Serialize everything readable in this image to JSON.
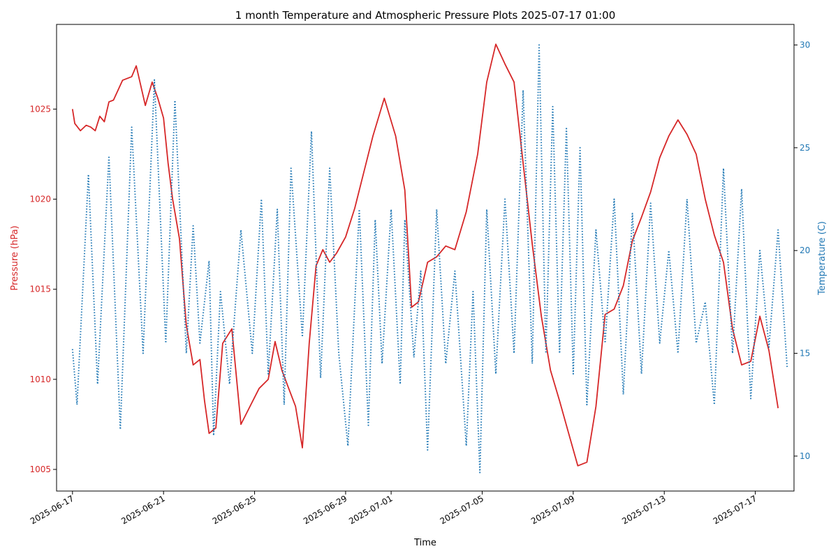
{
  "chart_data": {
    "type": "line",
    "title": "1 month Temperature and Atmospheric Pressure Plots  2025-07-17 01:00",
    "xlabel": "Time",
    "x_ticks": [
      "2025-06-17",
      "2025-06-21",
      "2025-06-25",
      "2025-06-29",
      "2025-07-01",
      "2025-07-05",
      "2025-07-09",
      "2025-07-13",
      "2025-07-17"
    ],
    "y_left": {
      "label": "Pressure (hPa)",
      "ticks": [
        "1005",
        "1010",
        "1015",
        "1020",
        "1025"
      ],
      "range": [
        1003.8,
        1029.7
      ],
      "color": "#d62728"
    },
    "y_right": {
      "label": "Temperature (C)",
      "ticks": [
        "10",
        "15",
        "20",
        "25",
        "30"
      ],
      "range": [
        8.3,
        31.0
      ],
      "color": "#1f77b4"
    },
    "x_range_days": [
      -0.7,
      31.7
    ],
    "series": [
      {
        "name": "Pressure (hPa)",
        "axis": "left",
        "style": "solid",
        "color": "#d62728",
        "x": [
          0,
          0.1,
          0.35,
          0.6,
          0.8,
          1.0,
          1.2,
          1.4,
          1.6,
          1.8,
          2.2,
          2.6,
          2.8,
          3.2,
          3.5,
          3.75,
          4.0,
          4.2,
          4.4,
          4.7,
          5.0,
          5.3,
          5.6,
          5.8,
          6.0,
          6.3,
          6.6,
          7.0,
          7.4,
          7.8,
          8.2,
          8.6,
          8.9,
          9.2,
          9.5,
          9.8,
          10.1,
          10.4,
          10.7,
          11.0,
          11.3,
          11.6,
          12.0,
          12.4,
          12.8,
          13.2,
          13.7,
          14.2,
          14.6,
          14.9,
          15.2,
          15.6,
          16.0,
          16.4,
          16.8,
          17.3,
          17.8,
          18.2,
          18.6,
          19.0,
          19.4,
          19.8,
          20.2,
          20.6,
          21.0,
          21.4,
          21.8,
          22.2,
          22.6,
          23.0,
          23.4,
          23.8,
          24.2,
          24.6,
          25.0,
          25.4,
          25.8,
          26.2,
          26.6,
          27.0,
          27.4,
          27.8,
          28.2,
          28.6,
          29.0,
          29.4,
          29.8,
          30.2,
          30.6,
          31.0
        ],
        "y": [
          1025.0,
          1024.2,
          1023.8,
          1024.1,
          1024.0,
          1023.8,
          1024.6,
          1024.3,
          1025.4,
          1025.5,
          1026.6,
          1026.8,
          1027.4,
          1025.2,
          1026.5,
          1025.6,
          1024.5,
          1022.0,
          1020.0,
          1017.8,
          1013.0,
          1010.8,
          1011.1,
          1008.8,
          1007.0,
          1007.3,
          1012.0,
          1012.8,
          1007.5,
          1008.5,
          1009.5,
          1010.0,
          1012.1,
          1010.5,
          1009.5,
          1008.5,
          1006.2,
          1012.0,
          1016.3,
          1017.2,
          1016.5,
          1017.0,
          1017.9,
          1019.5,
          1021.5,
          1023.5,
          1025.6,
          1023.5,
          1020.5,
          1014.0,
          1014.3,
          1016.5,
          1016.8,
          1017.4,
          1017.2,
          1019.3,
          1022.5,
          1026.5,
          1028.6,
          1027.5,
          1026.5,
          1022.0,
          1017.5,
          1013.5,
          1010.5,
          1008.8,
          1007.0,
          1005.2,
          1005.4,
          1008.5,
          1013.6,
          1013.9,
          1015.2,
          1017.7,
          1019.0,
          1020.4,
          1022.3,
          1023.5,
          1024.4,
          1023.6,
          1022.5,
          1020.0,
          1018.0,
          1016.5,
          1012.8,
          1010.8,
          1011.0,
          1013.5,
          1011.6,
          1008.4
        ]
      },
      {
        "name": "Temperature (C)",
        "axis": "right",
        "style": "dotted",
        "color": "#1f77b4",
        "x": [
          0,
          0.2,
          0.7,
          1.1,
          1.6,
          2.1,
          2.6,
          3.1,
          3.6,
          4.1,
          4.5,
          5.0,
          5.3,
          5.6,
          6.0,
          6.2,
          6.5,
          6.9,
          7.4,
          7.9,
          8.3,
          8.6,
          9.0,
          9.3,
          9.6,
          10.1,
          10.5,
          10.9,
          11.3,
          11.7,
          12.1,
          12.6,
          13.0,
          13.3,
          13.6,
          14.0,
          14.4,
          14.6,
          15.0,
          15.3,
          15.6,
          16.0,
          16.4,
          16.8,
          17.3,
          17.6,
          17.9,
          18.2,
          18.6,
          19.0,
          19.4,
          19.8,
          20.2,
          20.5,
          20.8,
          21.1,
          21.4,
          21.7,
          22.0,
          22.3,
          22.6,
          23.0,
          23.4,
          23.8,
          24.2,
          24.6,
          25.0,
          25.4,
          25.8,
          26.2,
          26.6,
          27.0,
          27.4,
          27.8,
          28.2,
          28.6,
          29.0,
          29.4,
          29.8,
          30.2,
          30.6,
          31.0,
          31.4
        ],
        "y": [
          15.2,
          12.5,
          23.7,
          13.5,
          24.6,
          11.3,
          26.0,
          15.0,
          28.3,
          15.5,
          27.3,
          15.0,
          21.2,
          15.5,
          19.5,
          11.0,
          18.0,
          13.5,
          21.0,
          15.0,
          22.5,
          14.0,
          22.0,
          12.5,
          24.0,
          15.8,
          25.8,
          13.8,
          24.0,
          15.0,
          10.5,
          22.0,
          11.5,
          21.5,
          14.5,
          22.0,
          13.5,
          21.5,
          14.8,
          19.0,
          10.3,
          22.0,
          14.5,
          19.0,
          10.5,
          18.0,
          9.2,
          22.0,
          14.0,
          22.5,
          15.0,
          27.8,
          14.5,
          30.0,
          15.0,
          27.0,
          15.0,
          26.0,
          14.0,
          25.0,
          12.5,
          21.0,
          15.5,
          22.5,
          13.0,
          21.8,
          14.0,
          22.3,
          15.5,
          20.0,
          15.0,
          22.5,
          15.5,
          17.5,
          12.5,
          24.0,
          15.0,
          23.0,
          12.8,
          20.0,
          15.3,
          21.0,
          14.3
        ]
      }
    ],
    "grid": false,
    "legend": "none"
  }
}
